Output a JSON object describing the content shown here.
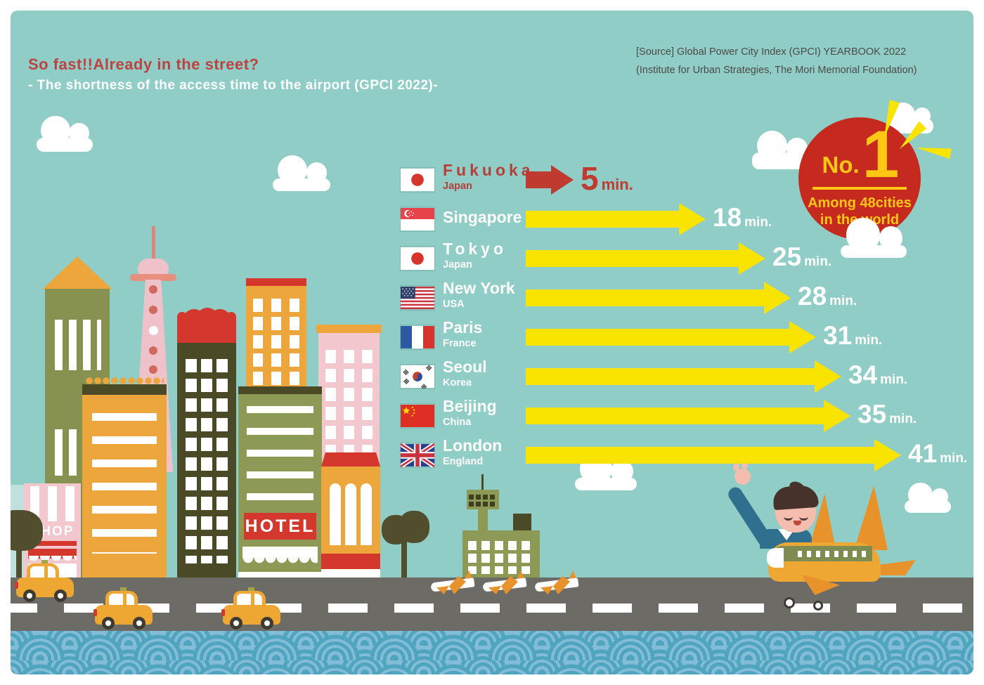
{
  "header": {
    "title": "So fast!!Already in the street?",
    "subtitle": "- The shortness of the access time to the airport (GPCI 2022)-",
    "source_line1": "[Source] Global Power City Index (GPCI) YEARBOOK 2022",
    "source_line2": "(Institute for Urban Strategies, The Mori Memorial Foundation)"
  },
  "badge": {
    "prefix": "No.",
    "rank": "1",
    "caption_line1": "Among 48cities",
    "caption_line2": "in the world"
  },
  "scene": {
    "shop_sign": "SHOP",
    "hotel_sign": "HOTEL"
  },
  "chart_data": {
    "type": "bar",
    "orientation": "horizontal",
    "title": "The shortness of the access time to the airport (GPCI 2022)",
    "unit": "min.",
    "categories": [
      "Fukuoka",
      "Singapore",
      "Tokyo",
      "New York",
      "Paris",
      "Seoul",
      "Beijing",
      "London"
    ],
    "values": [
      5,
      18,
      25,
      28,
      31,
      34,
      35,
      41
    ],
    "xlim": [
      0,
      45
    ],
    "legend": "none",
    "rows": [
      {
        "city": "Fukuoka",
        "country": "Japan",
        "flag": "japan",
        "minutes": 5,
        "unit": "min.",
        "highlight": true
      },
      {
        "city": "Singapore",
        "country": "",
        "flag": "singapore",
        "minutes": 18,
        "unit": "min.",
        "highlight": false
      },
      {
        "city": "Tokyo",
        "country": "Japan",
        "flag": "japan",
        "minutes": 25,
        "unit": "min.",
        "highlight": false
      },
      {
        "city": "New York",
        "country": "USA",
        "flag": "usa",
        "minutes": 28,
        "unit": "min.",
        "highlight": false
      },
      {
        "city": "Paris",
        "country": "France",
        "flag": "france",
        "minutes": 31,
        "unit": "min.",
        "highlight": false
      },
      {
        "city": "Seoul",
        "country": "Korea",
        "flag": "korea",
        "minutes": 34,
        "unit": "min.",
        "highlight": false
      },
      {
        "city": "Beijing",
        "country": "China",
        "flag": "china",
        "minutes": 35,
        "unit": "min.",
        "highlight": false
      },
      {
        "city": "London",
        "country": "England",
        "flag": "uk",
        "minutes": 41,
        "unit": "min.",
        "highlight": false
      }
    ]
  },
  "colors": {
    "background": "#8FCDC6",
    "arrow_yellow": "#F9E300",
    "highlight_red": "#C03A30",
    "badge_red": "#C62A1F",
    "badge_yellow": "#FFC715",
    "title_red": "#BC4340",
    "text_white": "#FFFFFF",
    "source_gray": "#4E4A47"
  }
}
